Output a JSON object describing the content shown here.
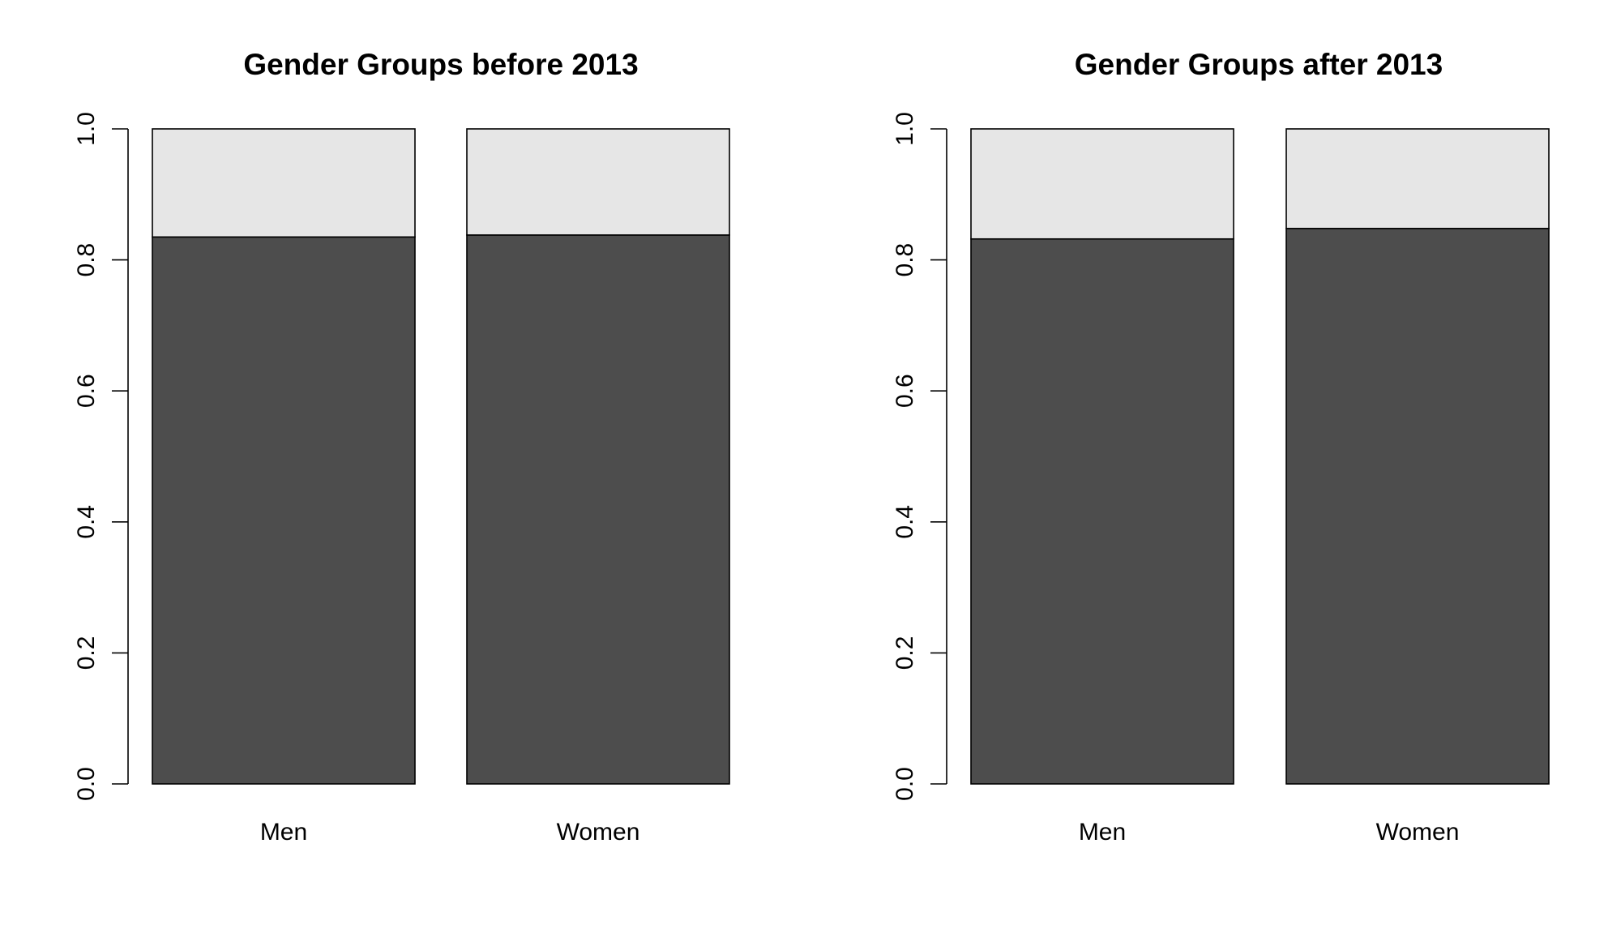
{
  "chart_data": [
    {
      "type": "bar",
      "stacked": true,
      "normalized": true,
      "title": "Gender Groups before 2013",
      "categories": [
        "Men",
        "Women"
      ],
      "series": [
        {
          "values": [
            0.835,
            0.838
          ],
          "color": "#4d4d4d"
        },
        {
          "values": [
            0.165,
            0.162
          ],
          "color": "#e6e6e6"
        }
      ],
      "xlabel": "",
      "ylabel": "",
      "ylim": [
        0,
        1
      ],
      "yticks": [
        "0.0",
        "0.2",
        "0.4",
        "0.6",
        "0.8",
        "1.0"
      ],
      "grid": false,
      "legend": "none"
    },
    {
      "type": "bar",
      "stacked": true,
      "normalized": true,
      "title": "Gender Groups after 2013",
      "categories": [
        "Men",
        "Women"
      ],
      "series": [
        {
          "values": [
            0.832,
            0.848
          ],
          "color": "#4d4d4d"
        },
        {
          "values": [
            0.168,
            0.152
          ],
          "color": "#e6e6e6"
        }
      ],
      "xlabel": "",
      "ylabel": "",
      "ylim": [
        0,
        1
      ],
      "yticks": [
        "0.0",
        "0.2",
        "0.4",
        "0.6",
        "0.8",
        "1.0"
      ],
      "grid": false,
      "legend": "none"
    }
  ]
}
